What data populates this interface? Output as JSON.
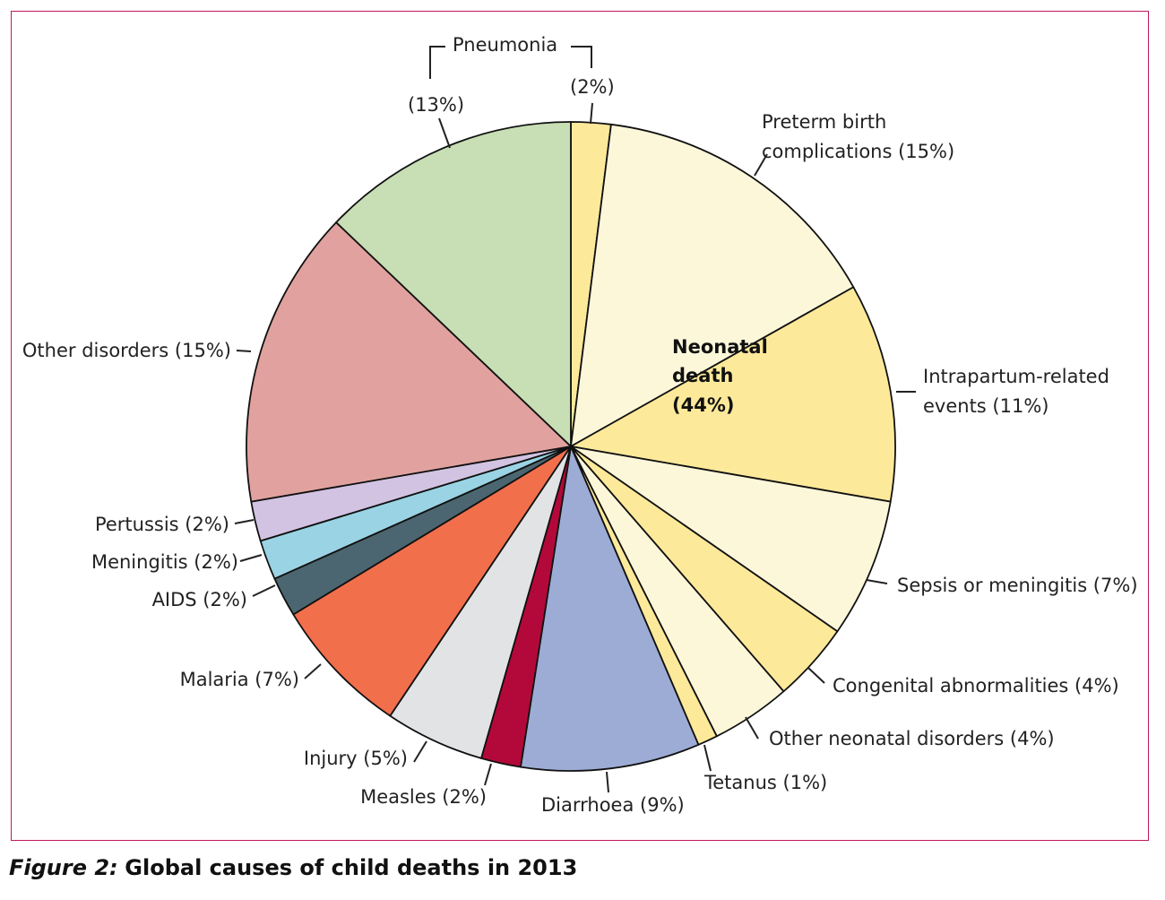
{
  "caption": {
    "figure_label": "Figure 2:",
    "text": "Global causes of child deaths in 2013"
  },
  "chart_data": {
    "type": "pie",
    "title": "",
    "center_label": {
      "line1": "Neonatal",
      "line2": "death",
      "line3": "(44%)"
    },
    "slices": [
      {
        "label": "Pneumonia (2%)",
        "value": 2,
        "group": "neonatal",
        "color": "#fde99a"
      },
      {
        "label": "Preterm birth complications (15%)",
        "value": 15,
        "group": "neonatal",
        "color": "#fdf7da"
      },
      {
        "label": "Intrapartum-related events (11%)",
        "value": 11,
        "group": "neonatal",
        "color": "#fde99a"
      },
      {
        "label": "Sepsis or meningitis (7%)",
        "value": 7,
        "group": "neonatal",
        "color": "#fdf7da"
      },
      {
        "label": "Congenital abnormalities (4%)",
        "value": 4,
        "group": "neonatal",
        "color": "#fde99a"
      },
      {
        "label": "Other neonatal disorders (4%)",
        "value": 4,
        "group": "neonatal",
        "color": "#fdf7da"
      },
      {
        "label": "Tetanus (1%)",
        "value": 1,
        "group": "neonatal",
        "color": "#fde99a"
      },
      {
        "label": "Diarrhoea (9%)",
        "value": 9,
        "group": "postneonatal",
        "color": "#9dacd5"
      },
      {
        "label": "Measles (2%)",
        "value": 2,
        "group": "postneonatal",
        "color": "#b3093a"
      },
      {
        "label": "Injury (5%)",
        "value": 5,
        "group": "postneonatal",
        "color": "#e2e3e5"
      },
      {
        "label": "Malaria (7%)",
        "value": 7,
        "group": "postneonatal",
        "color": "#f26f4c"
      },
      {
        "label": "AIDS (2%)",
        "value": 2,
        "group": "postneonatal",
        "color": "#4b6670"
      },
      {
        "label": "Meningitis (2%)",
        "value": 2,
        "group": "postneonatal",
        "color": "#9ad4e4"
      },
      {
        "label": "Pertussis (2%)",
        "value": 2,
        "group": "postneonatal",
        "color": "#d2c3e2"
      },
      {
        "label": "Other disorders (15%)",
        "value": 15,
        "group": "postneonatal",
        "color": "#e1a29f"
      },
      {
        "label": "Pneumonia (13%)",
        "value": 13,
        "group": "postneonatal",
        "color": "#c8deb4"
      }
    ],
    "labels": {
      "pneumonia_title": "Pneumonia",
      "pneumonia_post": "(13%)",
      "pneumonia_neo": "(2%)",
      "preterm_1": "Preterm birth",
      "preterm_2": "complications (15%)",
      "intrapartum_1": "Intrapartum-related",
      "intrapartum_2": "events (11%)",
      "sepsis": "Sepsis or meningitis (7%)",
      "congenital": "Congenital abnormalities (4%)",
      "other_neonatal": "Other neonatal disorders (4%)",
      "tetanus": "Tetanus (1%)",
      "diarrhoea": "Diarrhoea (9%)",
      "measles": "Measles (2%)",
      "injury": "Injury (5%)",
      "malaria": "Malaria (7%)",
      "aids": "AIDS (2%)",
      "meningitis": "Meningitis (2%)",
      "pertussis": "Pertussis (2%)",
      "other_disorders": "Other disorders (15%)"
    }
  }
}
